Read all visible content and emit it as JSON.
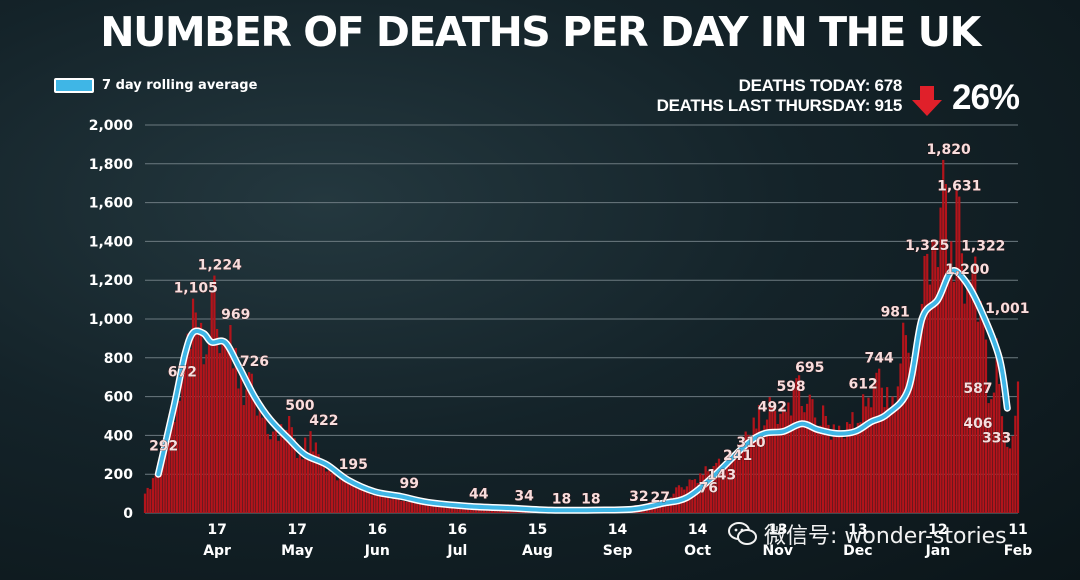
{
  "header": {
    "title": "NUMBER OF DEATHS PER DAY IN THE UK",
    "legend_label": "7 day rolling average",
    "deaths_today": "DEATHS TODAY: 678",
    "deaths_last_thursday": "DEATHS LAST THURSDAY: 915",
    "change": "26%",
    "change_direction": "down"
  },
  "watermark": {
    "text": "微信号: wonder-stories"
  },
  "colors": {
    "bars": "#b3141b",
    "rolling_line": "#3fb6e6",
    "arrow": "#e0202a",
    "grid": "#6c7a80"
  },
  "chart_data": {
    "type": "bar",
    "title": "NUMBER OF DEATHS PER DAY IN THE UK",
    "xlabel": "",
    "ylabel": "",
    "ylim": [
      0,
      2000
    ],
    "yticks": [
      0,
      200,
      400,
      600,
      800,
      1000,
      1200,
      1400,
      1600,
      1800,
      2000
    ],
    "ytick_labels": [
      "0",
      "200",
      "400",
      "600",
      "800",
      "1,000",
      "1,200",
      "1,400",
      "1,600",
      "1,800",
      "2,000"
    ],
    "grid": true,
    "legend": "top-left",
    "xticks": [
      {
        "date": "2020-04-17",
        "day": "17",
        "month": "Apr"
      },
      {
        "date": "2020-05-17",
        "day": "17",
        "month": "May"
      },
      {
        "date": "2020-06-16",
        "day": "16",
        "month": "Jun"
      },
      {
        "date": "2020-07-16",
        "day": "16",
        "month": "Jul"
      },
      {
        "date": "2020-08-15",
        "day": "15",
        "month": "Aug"
      },
      {
        "date": "2020-09-14",
        "day": "14",
        "month": "Sep"
      },
      {
        "date": "2020-10-14",
        "day": "14",
        "month": "Oct"
      },
      {
        "date": "2020-11-13",
        "day": "13",
        "month": "Nov"
      },
      {
        "date": "2020-12-13",
        "day": "13",
        "month": "Dec"
      },
      {
        "date": "2021-01-12",
        "day": "12",
        "month": "Jan"
      },
      {
        "date": "2021-02-11",
        "day": "11",
        "month": "Feb"
      }
    ],
    "date_range": [
      "2020-03-21",
      "2021-02-11"
    ],
    "series": [
      {
        "name": "Daily deaths",
        "points": [
          [
            "2020-03-21",
            100
          ],
          [
            "2020-03-24",
            180
          ],
          [
            "2020-03-27",
            292
          ],
          [
            "2020-03-31",
            480
          ],
          [
            "2020-04-02",
            672
          ],
          [
            "2020-04-05",
            850
          ],
          [
            "2020-04-08",
            1105
          ],
          [
            "2020-04-11",
            980
          ],
          [
            "2020-04-14",
            900
          ],
          [
            "2020-04-16",
            1224
          ],
          [
            "2020-04-19",
            880
          ],
          [
            "2020-04-22",
            969
          ],
          [
            "2020-04-26",
            700
          ],
          [
            "2020-04-29",
            726
          ],
          [
            "2020-05-03",
            560
          ],
          [
            "2020-05-08",
            420
          ],
          [
            "2020-05-14",
            500
          ],
          [
            "2020-05-18",
            300
          ],
          [
            "2020-05-22",
            422
          ],
          [
            "2020-05-27",
            260
          ],
          [
            "2020-06-03",
            195
          ],
          [
            "2020-06-10",
            150
          ],
          [
            "2020-06-16",
            99
          ],
          [
            "2020-06-24",
            80
          ],
          [
            "2020-07-02",
            60
          ],
          [
            "2020-07-12",
            44
          ],
          [
            "2020-07-22",
            34
          ],
          [
            "2020-07-30",
            30
          ],
          [
            "2020-08-06",
            18
          ],
          [
            "2020-08-20",
            18
          ],
          [
            "2020-08-30",
            15
          ],
          [
            "2020-09-06",
            32
          ],
          [
            "2020-09-11",
            27
          ],
          [
            "2020-09-20",
            35
          ],
          [
            "2020-09-27",
            60
          ],
          [
            "2020-10-02",
            76
          ],
          [
            "2020-10-07",
            143
          ],
          [
            "2020-10-12",
            170
          ],
          [
            "2020-10-17",
            241
          ],
          [
            "2020-10-22",
            280
          ],
          [
            "2020-10-27",
            310
          ],
          [
            "2020-11-01",
            420
          ],
          [
            "2020-11-04",
            492
          ],
          [
            "2020-11-10",
            598
          ],
          [
            "2020-11-15",
            560
          ],
          [
            "2020-11-20",
            695
          ],
          [
            "2020-11-25",
            610
          ],
          [
            "2020-12-01",
            500
          ],
          [
            "2020-12-06",
            450
          ],
          [
            "2020-12-11",
            520
          ],
          [
            "2020-12-15",
            612
          ],
          [
            "2020-12-21",
            744
          ],
          [
            "2020-12-26",
            600
          ],
          [
            "2020-12-30",
            981
          ],
          [
            "2021-01-04",
            900
          ],
          [
            "2021-01-07",
            1325
          ],
          [
            "2021-01-11",
            1400
          ],
          [
            "2021-01-14",
            1820
          ],
          [
            "2021-01-17",
            1400
          ],
          [
            "2021-01-20",
            1631
          ],
          [
            "2021-01-23",
            1200
          ],
          [
            "2021-01-26",
            1322
          ],
          [
            "2021-01-29",
            1001
          ],
          [
            "2021-02-01",
            587
          ],
          [
            "2021-02-03",
            900
          ],
          [
            "2021-02-06",
            406
          ],
          [
            "2021-02-08",
            333
          ],
          [
            "2021-02-11",
            678
          ]
        ]
      },
      {
        "name": "7 day rolling average",
        "points": [
          [
            "2020-03-26",
            200
          ],
          [
            "2020-04-01",
            560
          ],
          [
            "2020-04-05",
            820
          ],
          [
            "2020-04-08",
            930
          ],
          [
            "2020-04-12",
            925
          ],
          [
            "2020-04-15",
            880
          ],
          [
            "2020-04-20",
            880
          ],
          [
            "2020-04-25",
            760
          ],
          [
            "2020-05-01",
            600
          ],
          [
            "2020-05-07",
            480
          ],
          [
            "2020-05-14",
            380
          ],
          [
            "2020-05-20",
            300
          ],
          [
            "2020-05-28",
            250
          ],
          [
            "2020-06-05",
            170
          ],
          [
            "2020-06-15",
            110
          ],
          [
            "2020-06-25",
            85
          ],
          [
            "2020-07-05",
            55
          ],
          [
            "2020-07-20",
            35
          ],
          [
            "2020-08-05",
            25
          ],
          [
            "2020-08-20",
            15
          ],
          [
            "2020-09-05",
            15
          ],
          [
            "2020-09-20",
            20
          ],
          [
            "2020-10-01",
            50
          ],
          [
            "2020-10-10",
            80
          ],
          [
            "2020-10-20",
            190
          ],
          [
            "2020-11-01",
            350
          ],
          [
            "2020-11-08",
            410
          ],
          [
            "2020-11-15",
            420
          ],
          [
            "2020-11-22",
            460
          ],
          [
            "2020-11-28",
            430
          ],
          [
            "2020-12-05",
            410
          ],
          [
            "2020-12-12",
            420
          ],
          [
            "2020-12-18",
            470
          ],
          [
            "2020-12-24",
            510
          ],
          [
            "2021-01-01",
            640
          ],
          [
            "2021-01-06",
            1000
          ],
          [
            "2021-01-12",
            1100
          ],
          [
            "2021-01-17",
            1245
          ],
          [
            "2021-01-22",
            1200
          ],
          [
            "2021-01-28",
            1050
          ],
          [
            "2021-02-04",
            800
          ],
          [
            "2021-02-07",
            540
          ]
        ]
      }
    ],
    "data_labels": [
      {
        "date": "2020-03-28",
        "value": 292,
        "text": "292"
      },
      {
        "date": "2020-04-04",
        "value": 672,
        "text": "672"
      },
      {
        "date": "2020-04-09",
        "value": 1105,
        "text": "1,105"
      },
      {
        "date": "2020-04-18",
        "value": 1224,
        "text": "1,224"
      },
      {
        "date": "2020-04-24",
        "value": 969,
        "text": "969"
      },
      {
        "date": "2020-05-01",
        "value": 726,
        "text": "726"
      },
      {
        "date": "2020-05-18",
        "value": 500,
        "text": "500"
      },
      {
        "date": "2020-05-27",
        "value": 422,
        "text": "422"
      },
      {
        "date": "2020-06-07",
        "value": 195,
        "text": "195"
      },
      {
        "date": "2020-06-28",
        "value": 99,
        "text": "99"
      },
      {
        "date": "2020-07-24",
        "value": 44,
        "text": "44"
      },
      {
        "date": "2020-08-10",
        "value": 34,
        "text": "34"
      },
      {
        "date": "2020-08-24",
        "value": 18,
        "text": "18"
      },
      {
        "date": "2020-09-04",
        "value": 18,
        "text": "18"
      },
      {
        "date": "2020-09-22",
        "value": 32,
        "text": "32"
      },
      {
        "date": "2020-09-30",
        "value": 27,
        "text": "27"
      },
      {
        "date": "2020-10-18",
        "value": 76,
        "text": "76"
      },
      {
        "date": "2020-10-23",
        "value": 143,
        "text": "143"
      },
      {
        "date": "2020-10-29",
        "value": 241,
        "text": "241"
      },
      {
        "date": "2020-11-03",
        "value": 310,
        "text": "310"
      },
      {
        "date": "2020-11-11",
        "value": 492,
        "text": "492"
      },
      {
        "date": "2020-11-18",
        "value": 598,
        "text": "598"
      },
      {
        "date": "2020-11-25",
        "value": 695,
        "text": "695"
      },
      {
        "date": "2020-12-15",
        "value": 612,
        "text": "612"
      },
      {
        "date": "2020-12-21",
        "value": 744,
        "text": "744"
      },
      {
        "date": "2020-12-27",
        "value": 981,
        "text": "981"
      },
      {
        "date": "2021-01-08",
        "value": 1325,
        "text": "1,325"
      },
      {
        "date": "2021-01-16",
        "value": 1820,
        "text": "1,820"
      },
      {
        "date": "2021-01-20",
        "value": 1631,
        "text": "1,631"
      },
      {
        "date": "2021-01-29",
        "value": 1322,
        "text": "1,322"
      },
      {
        "date": "2021-01-23",
        "value": 1200,
        "text": "1,200"
      },
      {
        "date": "2021-02-07",
        "value": 1001,
        "text": "1,001"
      },
      {
        "date": "2021-01-27",
        "value": 587,
        "text": "587"
      },
      {
        "date": "2021-01-27",
        "value": 406,
        "text": "406"
      },
      {
        "date": "2021-02-03",
        "value": 333,
        "text": "333"
      }
    ]
  }
}
